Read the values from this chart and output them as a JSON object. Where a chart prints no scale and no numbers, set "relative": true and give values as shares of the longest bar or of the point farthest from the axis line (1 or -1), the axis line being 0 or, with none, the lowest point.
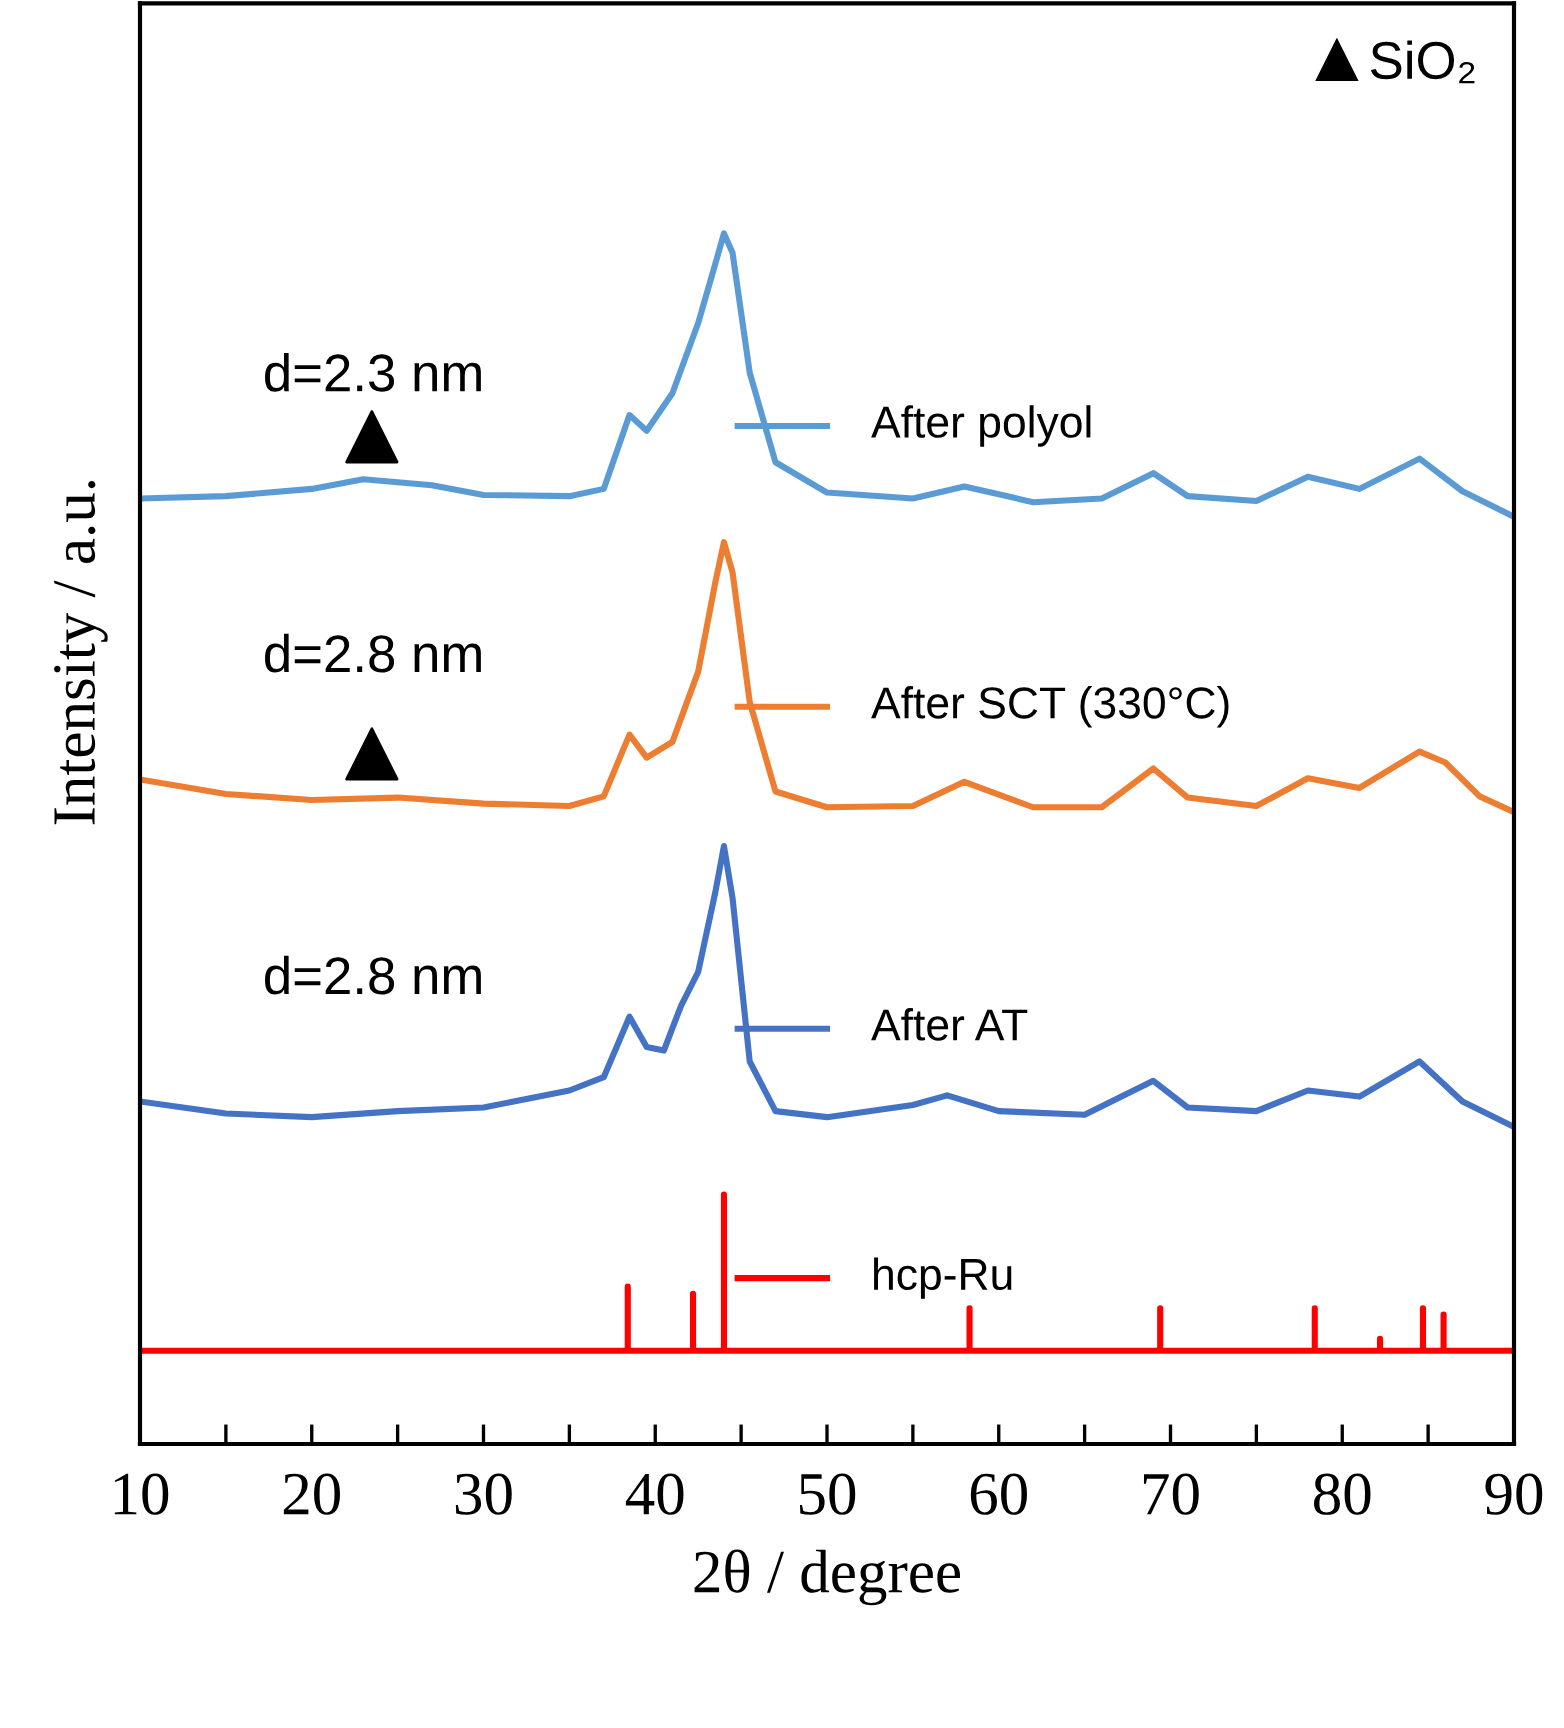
{
  "chart_data": {
    "type": "line",
    "relative": true,
    "xlabel": "2θ / degree",
    "ylabel": "Intensity / a.u.",
    "xlim": [
      10,
      90
    ],
    "xticks": [
      10,
      {
        "value": 15,
        "label": null
      },
      20,
      {
        "value": 25,
        "label": null
      },
      30,
      {
        "value": 35,
        "label": null
      },
      40,
      {
        "value": 45,
        "label": null
      },
      50,
      {
        "value": 55,
        "label": null
      },
      60,
      {
        "value": 65,
        "label": null
      },
      70,
      {
        "value": 75,
        "label": null
      },
      80,
      {
        "value": 85,
        "label": null
      },
      90
    ],
    "grid": false,
    "legend": "top right",
    "tick_labels": "x",
    "annotations": [
      "d=2.3 nm",
      "d=2.8 nm",
      "d=2.8 nm"
    ],
    "series": [
      {
        "name": "After polyol",
        "color": "#5b9bd5",
        "x": [
          10,
          15,
          20,
          23,
          27,
          30,
          35,
          37,
          38.5,
          39.5,
          41,
          42.5,
          43.5,
          44,
          44.5,
          45.5,
          47,
          50,
          55,
          58,
          62,
          66,
          69,
          71,
          75,
          78,
          81,
          84.5,
          87,
          90
        ],
        "values": [
          0.781,
          0.783,
          0.789,
          0.797,
          0.792,
          0.784,
          0.783,
          0.789,
          0.85,
          0.837,
          0.868,
          0.926,
          0.975,
          1.0,
          0.984,
          0.885,
          0.811,
          0.786,
          0.781,
          0.791,
          0.778,
          0.781,
          0.802,
          0.783,
          0.779,
          0.799,
          0.789,
          0.814,
          0.787,
          0.766
        ]
      },
      {
        "name": "After SCT (330°C)",
        "color": "#ed7d31",
        "x": [
          10,
          15,
          20,
          25,
          30,
          35,
          37,
          38.5,
          39.5,
          41,
          42.5,
          43.5,
          44,
          44.5,
          45.5,
          47,
          50,
          55,
          58,
          62,
          66,
          69,
          71,
          75,
          78,
          81,
          84.5,
          86,
          88,
          90
        ],
        "values": [
          0.549,
          0.537,
          0.532,
          0.534,
          0.529,
          0.527,
          0.535,
          0.586,
          0.567,
          0.58,
          0.638,
          0.712,
          0.745,
          0.72,
          0.613,
          0.539,
          0.526,
          0.527,
          0.547,
          0.526,
          0.526,
          0.558,
          0.534,
          0.527,
          0.55,
          0.542,
          0.572,
          0.563,
          0.535,
          0.522
        ]
      },
      {
        "name": "After AT",
        "color": "#4472c4",
        "x": [
          10,
          15,
          20,
          25,
          30,
          35,
          37,
          38.5,
          39.5,
          40.5,
          41.5,
          42.5,
          43.5,
          44,
          44.5,
          45.5,
          47,
          50,
          55,
          57,
          60,
          65,
          69,
          71,
          75,
          78,
          81,
          84.5,
          87,
          90
        ],
        "values": [
          0.283,
          0.273,
          0.27,
          0.275,
          0.278,
          0.292,
          0.303,
          0.353,
          0.328,
          0.325,
          0.362,
          0.39,
          0.456,
          0.494,
          0.451,
          0.316,
          0.275,
          0.27,
          0.28,
          0.288,
          0.275,
          0.272,
          0.3,
          0.278,
          0.275,
          0.292,
          0.287,
          0.316,
          0.283,
          0.262
        ]
      },
      {
        "name": "hcp-Ru",
        "color": "#ff0000",
        "x": [
          10,
          38.4,
          38.4,
          38.4,
          42.2,
          42.2,
          42.2,
          44.0,
          44.0,
          44.0,
          58.3,
          58.3,
          58.3,
          69.4,
          69.4,
          69.4,
          78.4,
          78.4,
          78.4,
          82.2,
          82.2,
          82.2,
          84.7,
          84.7,
          84.7,
          85.9,
          85.9,
          85.9,
          90
        ],
        "values": [
          0.077,
          0.077,
          0.13,
          0.077,
          0.077,
          0.124,
          0.077,
          0.077,
          0.206,
          0.077,
          0.077,
          0.112,
          0.077,
          0.077,
          0.112,
          0.077,
          0.077,
          0.112,
          0.077,
          0.077,
          0.087,
          0.077,
          0.077,
          0.112,
          0.077,
          0.077,
          0.107,
          0.077,
          0.077
        ]
      },
      {
        "name": "SiO₂",
        "type": "scatter",
        "marker": "triangle",
        "color": "#000000",
        "x": [
          23.5,
          23.5
        ],
        "values": [
          0.832,
          0.57
        ]
      }
    ]
  }
}
